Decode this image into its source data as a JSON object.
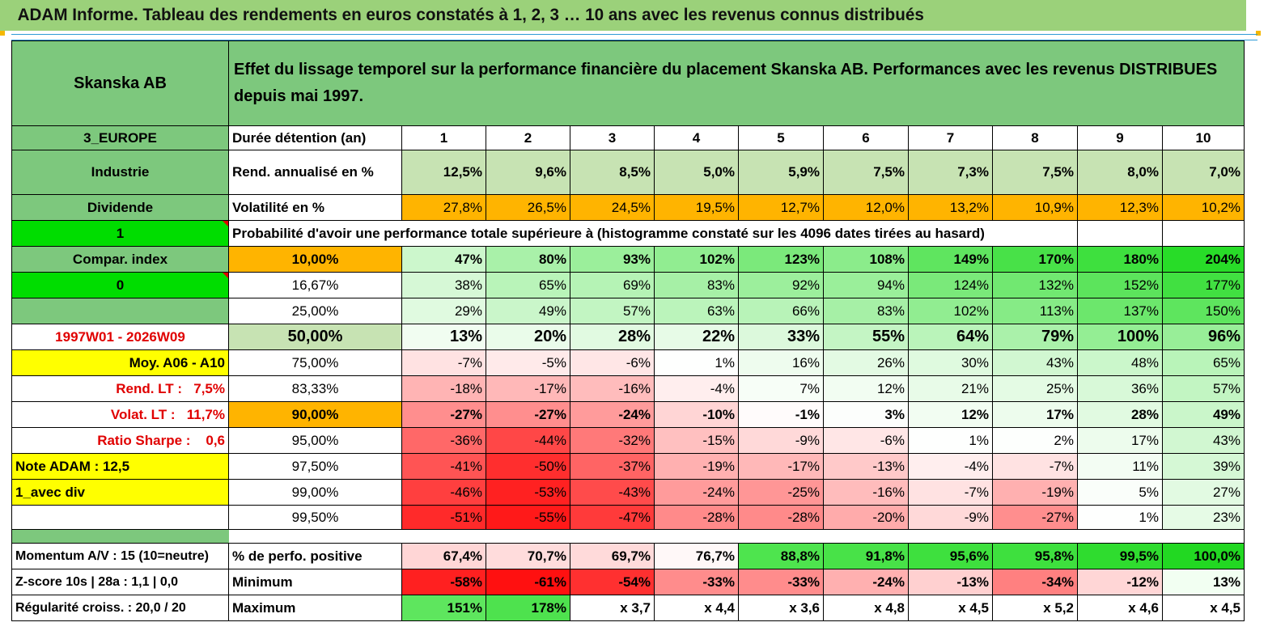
{
  "title": "ADAM Informe. Tableau des rendements en euros constatés à 1, 2, 3 … 10 ans avec les revenus connus distribués",
  "header": {
    "name": "Skanska AB",
    "description": "Effet du lissage temporel sur la performance financière du placement Skanska AB. Performances avec les revenus DISTRIBUES depuis mai 1997."
  },
  "left": {
    "region": "3_EUROPE",
    "sector": "Industrie",
    "income": "Dividende",
    "flag1": "1",
    "compar_index": "Compar. index",
    "flag0": "0",
    "period": "1997W01 - 2026W09",
    "moy": "Moy. A06 - A10",
    "rend_label": "Rend. LT :",
    "rend_value": "7,5%",
    "volat_label": "Volat. LT :",
    "volat_value": "11,7%",
    "sharpe_label": "Ratio Sharpe :",
    "sharpe_value": "0,6",
    "note": "Note ADAM : 12,5",
    "div": "1_avec div",
    "momentum": "Momentum A/V : 15 (10=neutre)",
    "zscore": "Z-score 10s | 28a : 1,1 | 0,0",
    "regularite": "Régularité croiss. : 20,0 / 20"
  },
  "labels": {
    "duree": "Durée détention (an)",
    "rend": "Rend. annualisé en %",
    "volat": "Volatilité en %",
    "proba": "Probabilité d'avoir une performance totale supérieure à (histogramme constaté sur les 4096 dates tirées au hasard)",
    "pos": "% de perfo. positive",
    "min": "Minimum",
    "max": "Maximum"
  },
  "years": [
    "1",
    "2",
    "3",
    "4",
    "5",
    "6",
    "7",
    "8",
    "9",
    "10"
  ],
  "rend": [
    "12,5%",
    "9,6%",
    "8,5%",
    "5,0%",
    "5,9%",
    "7,5%",
    "7,3%",
    "7,5%",
    "8,0%",
    "7,0%"
  ],
  "volat": [
    "27,8%",
    "26,5%",
    "24,5%",
    "19,5%",
    "12,7%",
    "12,0%",
    "13,2%",
    "10,9%",
    "12,3%",
    "10,2%"
  ],
  "quantiles": [
    {
      "pct": "10,00%",
      "values": [
        "47%",
        "80%",
        "93%",
        "102%",
        "123%",
        "108%",
        "149%",
        "170%",
        "180%",
        "204%"
      ]
    },
    {
      "pct": "16,67%",
      "values": [
        "38%",
        "65%",
        "69%",
        "83%",
        "92%",
        "94%",
        "124%",
        "132%",
        "152%",
        "177%"
      ]
    },
    {
      "pct": "25,00%",
      "values": [
        "29%",
        "49%",
        "57%",
        "63%",
        "66%",
        "83%",
        "102%",
        "113%",
        "137%",
        "150%"
      ]
    },
    {
      "pct": "50,00%",
      "values": [
        "13%",
        "20%",
        "28%",
        "22%",
        "33%",
        "55%",
        "64%",
        "79%",
        "100%",
        "96%"
      ]
    },
    {
      "pct": "75,00%",
      "values": [
        "-7%",
        "-5%",
        "-6%",
        "1%",
        "16%",
        "26%",
        "30%",
        "43%",
        "48%",
        "65%"
      ]
    },
    {
      "pct": "83,33%",
      "values": [
        "-18%",
        "-17%",
        "-16%",
        "-4%",
        "7%",
        "12%",
        "21%",
        "25%",
        "36%",
        "57%"
      ]
    },
    {
      "pct": "90,00%",
      "values": [
        "-27%",
        "-27%",
        "-24%",
        "-10%",
        "-1%",
        "3%",
        "12%",
        "17%",
        "28%",
        "49%"
      ]
    },
    {
      "pct": "95,00%",
      "values": [
        "-36%",
        "-44%",
        "-32%",
        "-15%",
        "-9%",
        "-6%",
        "1%",
        "2%",
        "17%",
        "43%"
      ]
    },
    {
      "pct": "97,50%",
      "values": [
        "-41%",
        "-50%",
        "-37%",
        "-19%",
        "-17%",
        "-13%",
        "-4%",
        "-7%",
        "11%",
        "39%"
      ]
    },
    {
      "pct": "99,00%",
      "values": [
        "-46%",
        "-53%",
        "-43%",
        "-24%",
        "-25%",
        "-16%",
        "-7%",
        "-19%",
        "5%",
        "27%"
      ]
    },
    {
      "pct": "99,50%",
      "values": [
        "-51%",
        "-55%",
        "-47%",
        "-28%",
        "-28%",
        "-20%",
        "-9%",
        "-27%",
        "1%",
        "23%"
      ]
    }
  ],
  "pos": [
    "67,4%",
    "70,7%",
    "69,7%",
    "76,7%",
    "88,8%",
    "91,8%",
    "95,6%",
    "95,8%",
    "99,5%",
    "100,0%"
  ],
  "min": [
    "-58%",
    "-61%",
    "-54%",
    "-33%",
    "-33%",
    "-24%",
    "-13%",
    "-34%",
    "-12%",
    "13%"
  ],
  "max": [
    "151%",
    "178%",
    "x 3,7",
    "x 4,4",
    "x 3,6",
    "x 4,8",
    "x 4,5",
    "x 5,2",
    "x 4,6",
    "x 4,5"
  ],
  "colors": {
    "pos": [
      "#ffd6d6",
      "#ffdcdc",
      "#ffdada",
      "#fff8f8",
      "#4ee44e",
      "#48e248",
      "#3ee03e",
      "#3ee03e",
      "#2fdc2f",
      "#22d822"
    ],
    "min": [
      "#ff2020",
      "#ff1010",
      "#ff3030",
      "#ff8c8c",
      "#ff8c8c",
      "#ffb0b0",
      "#ffd0d0",
      "#ff8080",
      "#ffd6d6",
      "#f2fff2"
    ],
    "max": [
      "#5ee65e",
      "#4ee24e",
      "#ffffff",
      "#ffffff",
      "#ffffff",
      "#ffffff",
      "#ffffff",
      "#ffffff",
      "#ffffff",
      "#ffffff"
    ]
  }
}
